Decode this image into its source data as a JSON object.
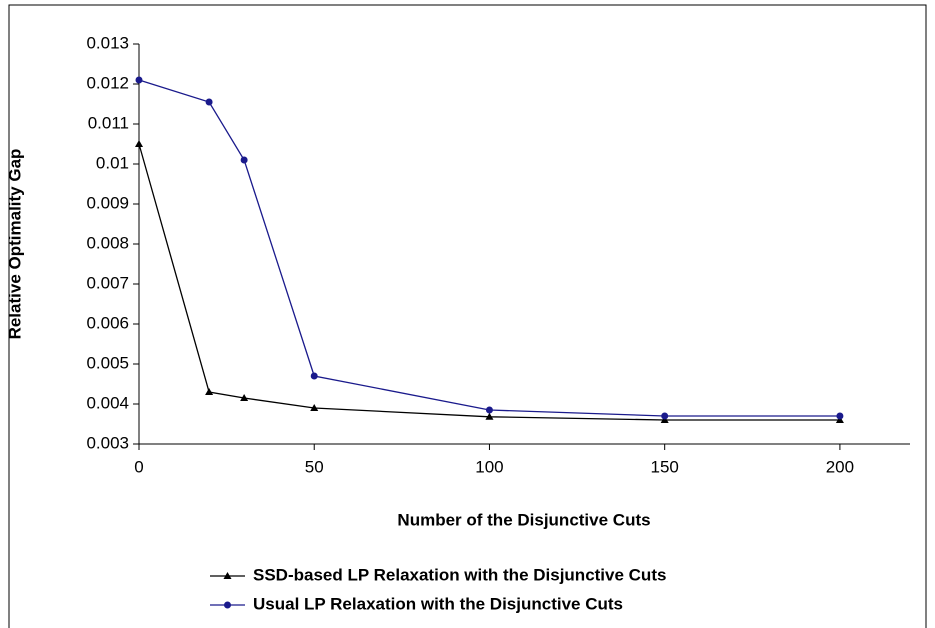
{
  "chart_data": {
    "type": "line",
    "x_label": "Number of the Disjunctive Cuts",
    "y_label": "Relative Optimality Gap",
    "x": [
      0,
      20,
      30,
      50,
      100,
      150,
      200
    ],
    "series": [
      {
        "name": "SSD-based LP Relaxation with the Disjunctive Cuts",
        "color": "#000000",
        "marker": "triangle",
        "values": [
          0.0105,
          0.0043,
          0.00415,
          0.0039,
          0.00368,
          0.0036,
          0.0036
        ]
      },
      {
        "name": "Usual LP Relaxation with the Disjunctive Cuts",
        "color": "#1a1a8c",
        "marker": "circle",
        "values": [
          0.0121,
          0.01155,
          0.0101,
          0.0047,
          0.00385,
          0.0037,
          0.0037
        ]
      }
    ],
    "xlim": [
      0,
      220
    ],
    "xticks": [
      0,
      50,
      100,
      150,
      200
    ],
    "ylim": [
      0.003,
      0.013
    ],
    "yticks": [
      0.003,
      0.004,
      0.005,
      0.006,
      0.007,
      0.008,
      0.009,
      0.01,
      0.011,
      0.012,
      0.013
    ],
    "grid": false,
    "legend": "bottom"
  }
}
